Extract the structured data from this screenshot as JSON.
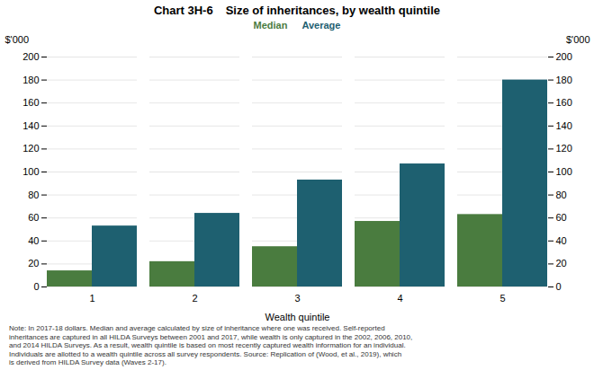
{
  "chart_data": {
    "type": "bar",
    "title": "Chart 3H-6",
    "subtitle": "Size of inheritances, by wealth quintile",
    "categories": [
      "1",
      "2",
      "3",
      "4",
      "5"
    ],
    "series": [
      {
        "name": "Median",
        "color": "#4a7c3f",
        "values": [
          14,
          22,
          35,
          57,
          63
        ]
      },
      {
        "name": "Average",
        "color": "#1e6070",
        "values": [
          53,
          64,
          93,
          107,
          180
        ]
      }
    ],
    "xlabel": "Wealth quintile",
    "ylabel": "$'000",
    "y2label": "$'000",
    "ylim": [
      0,
      200
    ],
    "yticks": [
      0,
      20,
      40,
      60,
      80,
      100,
      120,
      140,
      160,
      180,
      200
    ],
    "y2lim": [
      0,
      200
    ],
    "y2ticks": [
      0,
      20,
      40,
      60,
      80,
      100,
      120,
      140,
      160,
      180,
      200
    ],
    "grid": true,
    "legend": "top",
    "note": "Note: In 2017-18 dollars. Median and average calculated by size of inheritance where one was received. Self-reported\ninheritances are captured in all HILDA Surveys between 2001 and 2017, while wealth is only captured in the 2002, 2006, 2010,\nand 2014 HILDA Surveys. As a result, wealth quintile is based on most recently captured wealth information for an individual.\nIndividuals are allotted to a wealth quintile across all survey respondents. Source: Replication of (Wood, et al., 2019), which\nis derived from HILDA Survey data (Waves 2-17)."
  }
}
